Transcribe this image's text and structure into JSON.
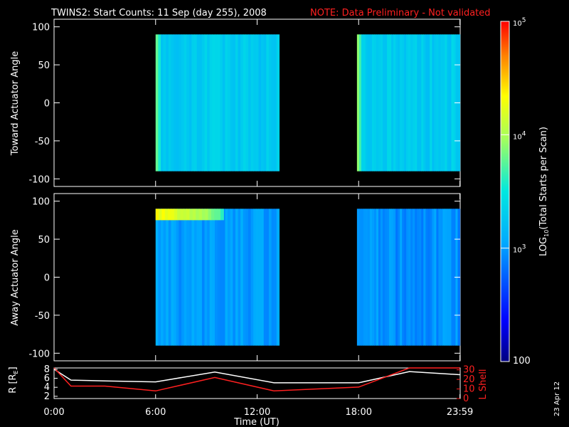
{
  "header": {
    "title": "TWINS2: Start Counts: 11 Sep (day 255), 2008",
    "note": "NOTE: Data Preliminary - Not validated"
  },
  "colors": {
    "background": "#000000",
    "axes": "#ffffff",
    "note": "#ff2020",
    "r_line": "#ffffff",
    "l_shell_line": "#ff2020"
  },
  "colorbar": {
    "label": "LOG10(Total Starts per Scan)",
    "label_main": "LOG",
    "label_sub": "10",
    "label_rest": "(Total Starts per Scan)",
    "ticks": [
      {
        "base": "10",
        "exp": "5",
        "value": 100000
      },
      {
        "base": "10",
        "exp": "4",
        "value": 10000
      },
      {
        "base": "10",
        "exp": "3",
        "value": 1000
      },
      {
        "label": "100",
        "value": 100
      }
    ],
    "scale": "log",
    "range": [
      100,
      100000
    ]
  },
  "x_axis": {
    "label": "Time (UT)",
    "ticks": [
      "0:00",
      "6:00",
      "12:00",
      "18:00",
      "23:59"
    ],
    "tick_hours": [
      0,
      6,
      12,
      18,
      23.983
    ],
    "range_hours": [
      0,
      24
    ]
  },
  "panels": [
    {
      "ylabel": "Toward Actuator Angle",
      "yticks": [
        "100",
        "50",
        "0",
        "-50",
        "-100"
      ],
      "ytick_values": [
        100,
        50,
        0,
        -50,
        -100
      ],
      "ylim": [
        -110,
        110
      ]
    },
    {
      "ylabel": "Away Actuator Angle",
      "yticks": [
        "100",
        "50",
        "0",
        "-50",
        "-100"
      ],
      "ytick_values": [
        100,
        50,
        0,
        -50,
        -100
      ],
      "ylim": [
        -110,
        110
      ]
    }
  ],
  "orbit_panel": {
    "left_label_main": "R [R",
    "left_label_sub": "E",
    "left_label_end": "]",
    "right_label": "L Shell",
    "left_ticks": [
      "8",
      "6",
      "4",
      "2"
    ],
    "left_tick_values": [
      8,
      6,
      4,
      2
    ],
    "left_range": [
      1.5,
      8.3
    ],
    "right_ticks": [
      "30",
      "20",
      "10",
      "0"
    ],
    "right_tick_values": [
      30,
      20,
      10,
      0
    ],
    "right_range": [
      0,
      32
    ]
  },
  "date_stamp": "23 Apr 12",
  "chart_data": [
    {
      "type": "heatmap",
      "title": "TWINS2: Start Counts: 11 Sep (day 255), 2008",
      "ylabel": "Toward Actuator Angle",
      "xlabel": "Time (UT)",
      "x_range_hours": [
        0,
        24
      ],
      "ylim": [
        -110,
        110
      ],
      "color_scale": "log",
      "color_range": [
        100,
        100000
      ],
      "data_blocks": [
        {
          "start_hour": 6.0,
          "end_hour": 13.3,
          "angle_range": [
            -90,
            90
          ],
          "typical_value": 2000,
          "edge_value": 6000
        },
        {
          "start_hour": 17.9,
          "end_hour": 23.98,
          "angle_range": [
            -90,
            90
          ],
          "typical_value": 2000,
          "edge_value": 8000
        }
      ]
    },
    {
      "type": "heatmap",
      "ylabel": "Away Actuator Angle",
      "xlabel": "Time (UT)",
      "x_range_hours": [
        0,
        24
      ],
      "ylim": [
        -110,
        110
      ],
      "color_scale": "log",
      "color_range": [
        100,
        100000
      ],
      "data_blocks": [
        {
          "start_hour": 6.0,
          "end_hour": 13.3,
          "angle_range": [
            -90,
            90
          ],
          "typical_value": 1000,
          "high_band_angle": [
            75,
            90
          ],
          "high_band_value": 20000
        },
        {
          "start_hour": 17.9,
          "end_hour": 23.98,
          "angle_range": [
            -90,
            90
          ],
          "typical_value": 900
        }
      ]
    },
    {
      "type": "line",
      "xlabel": "Time (UT)",
      "x": [
        0,
        1,
        3,
        6,
        9.5,
        13,
        18,
        21,
        23.98
      ],
      "series": [
        {
          "name": "R [RE]",
          "axis": "left",
          "values": [
            8.0,
            5.6,
            5.4,
            5.2,
            7.4,
            5.0,
            5.0,
            7.5,
            6.8
          ]
        },
        {
          "name": "L Shell",
          "axis": "right",
          "values": [
            33,
            13,
            13,
            8,
            22,
            8,
            12,
            35,
            35
          ]
        }
      ]
    }
  ]
}
